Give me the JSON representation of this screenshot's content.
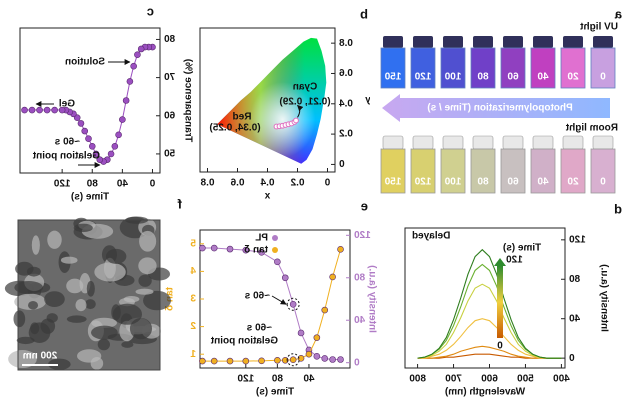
{
  "chart_data": [
    {
      "type": "transparence",
      "label": "c",
      "xlabel": "Time (s)",
      "ylabel": "Transparence (%)",
      "x": [
        0,
        5,
        10,
        15,
        20,
        25,
        30,
        35,
        40,
        45,
        50,
        55,
        60,
        65,
        70,
        75,
        80,
        85,
        90,
        95,
        100,
        105,
        110,
        115,
        120,
        130,
        140,
        150,
        160,
        170
      ],
      "values": [
        78,
        78,
        78,
        77.5,
        76,
        73,
        69,
        64,
        59,
        55,
        52,
        50,
        48.5,
        48,
        48.5,
        50,
        52,
        54,
        56,
        58,
        59.5,
        60.5,
        61,
        61.5,
        61.5,
        61.5,
        61.5,
        61.5,
        61.5,
        61.5
      ],
      "color": "#9b4fc0",
      "xlim": [
        -10,
        176
      ],
      "ylim": [
        45,
        83
      ],
      "xticks": [
        0,
        40,
        80,
        120
      ],
      "yticks": [
        50,
        60,
        70,
        80
      ],
      "annotations": [
        "Solution",
        "Gel",
        "~60 s",
        "Gelation point"
      ]
    },
    {
      "type": "cie",
      "label": "b",
      "xlabel": "x",
      "ylabel": "y",
      "x": [
        0.34,
        0.32,
        0.3,
        0.28,
        0.26,
        0.24,
        0.22,
        0.21
      ],
      "values": [
        0.25,
        0.252,
        0.255,
        0.26,
        0.265,
        0.27,
        0.28,
        0.29
      ],
      "color": "#e070c0",
      "xlim": [
        -0.05,
        0.85
      ],
      "ylim": [
        -0.05,
        0.9
      ],
      "xticks": [
        0,
        0.2,
        0.4,
        0.6,
        0.8
      ],
      "yticks": [
        0,
        0.2,
        0.4,
        0.6,
        0.8
      ],
      "annotations": [
        "Red",
        "(0.34, 0.25)",
        "Cyan",
        "(0.21, 0.29)"
      ]
    },
    {
      "type": "spectra",
      "label": "d",
      "title": "Delayed",
      "xlabel": "Wavelength (nm)",
      "ylabel": "Intensity (a.u.)",
      "x": [
        400,
        420,
        440,
        460,
        480,
        500,
        520,
        540,
        560,
        580,
        600,
        620,
        640,
        660,
        680,
        700,
        720,
        740,
        760,
        780,
        800
      ],
      "series": [
        {
          "color": "#c85a00",
          "values": [
            0,
            0,
            0,
            0,
            0,
            0,
            1,
            1,
            2,
            3,
            4,
            4,
            4,
            3,
            2,
            1,
            1,
            0,
            0,
            0,
            0
          ]
        },
        {
          "color": "#e08a10",
          "values": [
            0,
            0,
            0,
            0,
            0,
            1,
            2,
            4,
            7,
            9,
            11,
            12,
            11,
            9,
            7,
            4,
            2,
            1,
            0,
            0,
            0
          ]
        },
        {
          "color": "#f0c040",
          "values": [
            0,
            0,
            0,
            0,
            2,
            4,
            8,
            14,
            22,
            31,
            38,
            40,
            38,
            31,
            22,
            14,
            8,
            4,
            2,
            0,
            0
          ]
        },
        {
          "color": "#c8d040",
          "values": [
            0,
            0,
            0,
            1,
            3,
            7,
            14,
            26,
            41,
            58,
            71,
            75,
            71,
            58,
            41,
            26,
            14,
            7,
            3,
            1,
            0
          ]
        },
        {
          "color": "#6ab030",
          "values": [
            0,
            0,
            0,
            1,
            4,
            9,
            18,
            33,
            52,
            73,
            89,
            95,
            89,
            73,
            52,
            33,
            18,
            9,
            4,
            1,
            0
          ]
        },
        {
          "color": "#2e7d1e",
          "values": [
            0,
            0,
            0,
            1,
            4,
            10,
            21,
            39,
            61,
            85,
            103,
            110,
            103,
            85,
            61,
            39,
            21,
            10,
            4,
            1,
            0
          ]
        }
      ],
      "xlim": [
        390,
        835
      ],
      "ylim": [
        -10,
        132
      ],
      "xticks": [
        400,
        500,
        600,
        700,
        800
      ],
      "yticks": [
        0,
        40,
        80,
        120
      ],
      "colorbar": {
        "title": "Time (s)",
        "ticks": [
          0,
          120
        ],
        "colors": [
          "#c85a00",
          "#f0d040",
          "#2e8b2e"
        ]
      }
    },
    {
      "type": "dual",
      "label": "e",
      "xlabel": "Time (s)",
      "ylabel": "Intensity (a.u.)",
      "y2label": "tan δ",
      "x": [
        0,
        10,
        20,
        30,
        40,
        50,
        60,
        70,
        80,
        100,
        120,
        140,
        160,
        175
      ],
      "series": [
        {
          "name": "PL",
          "color": "#b07cc6",
          "values": [
            3,
            3,
            4,
            6,
            12,
            28,
            55,
            80,
            95,
            104,
            106,
            107,
            108,
            108
          ]
        },
        {
          "name": "tan δ",
          "color": "#f0b020",
          "axis": "y2",
          "values": [
            4.8,
            3.8,
            2.6,
            1.6,
            1.0,
            0.85,
            0.8,
            0.78,
            0.78,
            0.76,
            0.75,
            0.75,
            0.75,
            0.75
          ]
        }
      ],
      "xlim": [
        -12,
        178
      ],
      "ylim": [
        -5,
        125
      ],
      "yticks": [
        0,
        40,
        80,
        120
      ],
      "y2lim": [
        0.5,
        5.5
      ],
      "y2ticks": [
        1,
        2,
        3,
        4,
        5
      ],
      "xticks": [
        40,
        80,
        120
      ],
      "annotations": [
        "~60 s",
        "~60 s",
        "Gelation point"
      ]
    }
  ],
  "photos": {
    "label": "a",
    "uv_label": "UV light",
    "room_label": "Room light",
    "arrow_label": "Photopolymerization (Time / s)",
    "uv_times": [
      0,
      20,
      40,
      60,
      80,
      100,
      120,
      150
    ],
    "uv_colors": [
      "#c8a0e0",
      "#e070d0",
      "#c040c0",
      "#9040c0",
      "#7040c8",
      "#5050d0",
      "#4060e0",
      "#3070f0"
    ],
    "room_times": [
      0,
      20,
      40,
      60,
      80,
      100,
      120,
      150
    ],
    "room_colors": [
      "#d8b0d0",
      "#e0a8c8",
      "#d0b0c8",
      "#c8c0c0",
      "#c8c8a8",
      "#d0d090",
      "#d8d070",
      "#e0d060"
    ]
  },
  "sem": {
    "label": "f",
    "scale_bar": "200 nm"
  }
}
